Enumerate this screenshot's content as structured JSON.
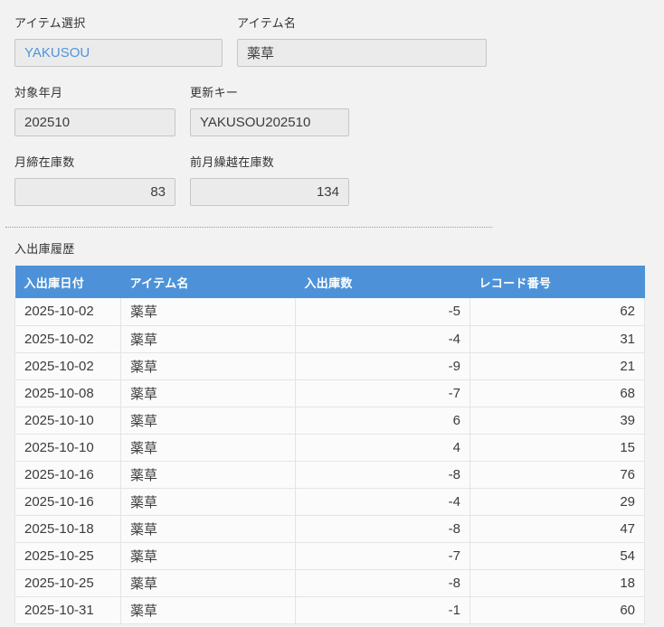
{
  "colors": {
    "header_blue": "#4d92d8",
    "link_blue": "#4f94db",
    "input_bg": "#ebebeb",
    "page_bg": "#f2f2f2"
  },
  "form": {
    "item_select": {
      "label": "アイテム選択",
      "value": "YAKUSOU"
    },
    "item_name": {
      "label": "アイテム名",
      "value": "薬草"
    },
    "target_month": {
      "label": "対象年月",
      "value": "202510"
    },
    "update_key": {
      "label": "更新キー",
      "value": "YAKUSOU202510"
    },
    "month_end_stock": {
      "label": "月締在庫数",
      "value": "83"
    },
    "prev_month_carryover_stock": {
      "label": "前月繰越在庫数",
      "value": "134"
    }
  },
  "history": {
    "section_title": "入出庫履歴",
    "columns": [
      "入出庫日付",
      "アイテム名",
      "入出庫数",
      "レコード番号"
    ],
    "rows": [
      {
        "date": "2025-10-02",
        "item": "薬草",
        "qty": "-5",
        "record_no": "62"
      },
      {
        "date": "2025-10-02",
        "item": "薬草",
        "qty": "-4",
        "record_no": "31"
      },
      {
        "date": "2025-10-02",
        "item": "薬草",
        "qty": "-9",
        "record_no": "21"
      },
      {
        "date": "2025-10-08",
        "item": "薬草",
        "qty": "-7",
        "record_no": "68"
      },
      {
        "date": "2025-10-10",
        "item": "薬草",
        "qty": "6",
        "record_no": "39"
      },
      {
        "date": "2025-10-10",
        "item": "薬草",
        "qty": "4",
        "record_no": "15"
      },
      {
        "date": "2025-10-16",
        "item": "薬草",
        "qty": "-8",
        "record_no": "76"
      },
      {
        "date": "2025-10-16",
        "item": "薬草",
        "qty": "-4",
        "record_no": "29"
      },
      {
        "date": "2025-10-18",
        "item": "薬草",
        "qty": "-8",
        "record_no": "47"
      },
      {
        "date": "2025-10-25",
        "item": "薬草",
        "qty": "-7",
        "record_no": "54"
      },
      {
        "date": "2025-10-25",
        "item": "薬草",
        "qty": "-8",
        "record_no": "18"
      },
      {
        "date": "2025-10-31",
        "item": "薬草",
        "qty": "-1",
        "record_no": "60"
      }
    ]
  }
}
